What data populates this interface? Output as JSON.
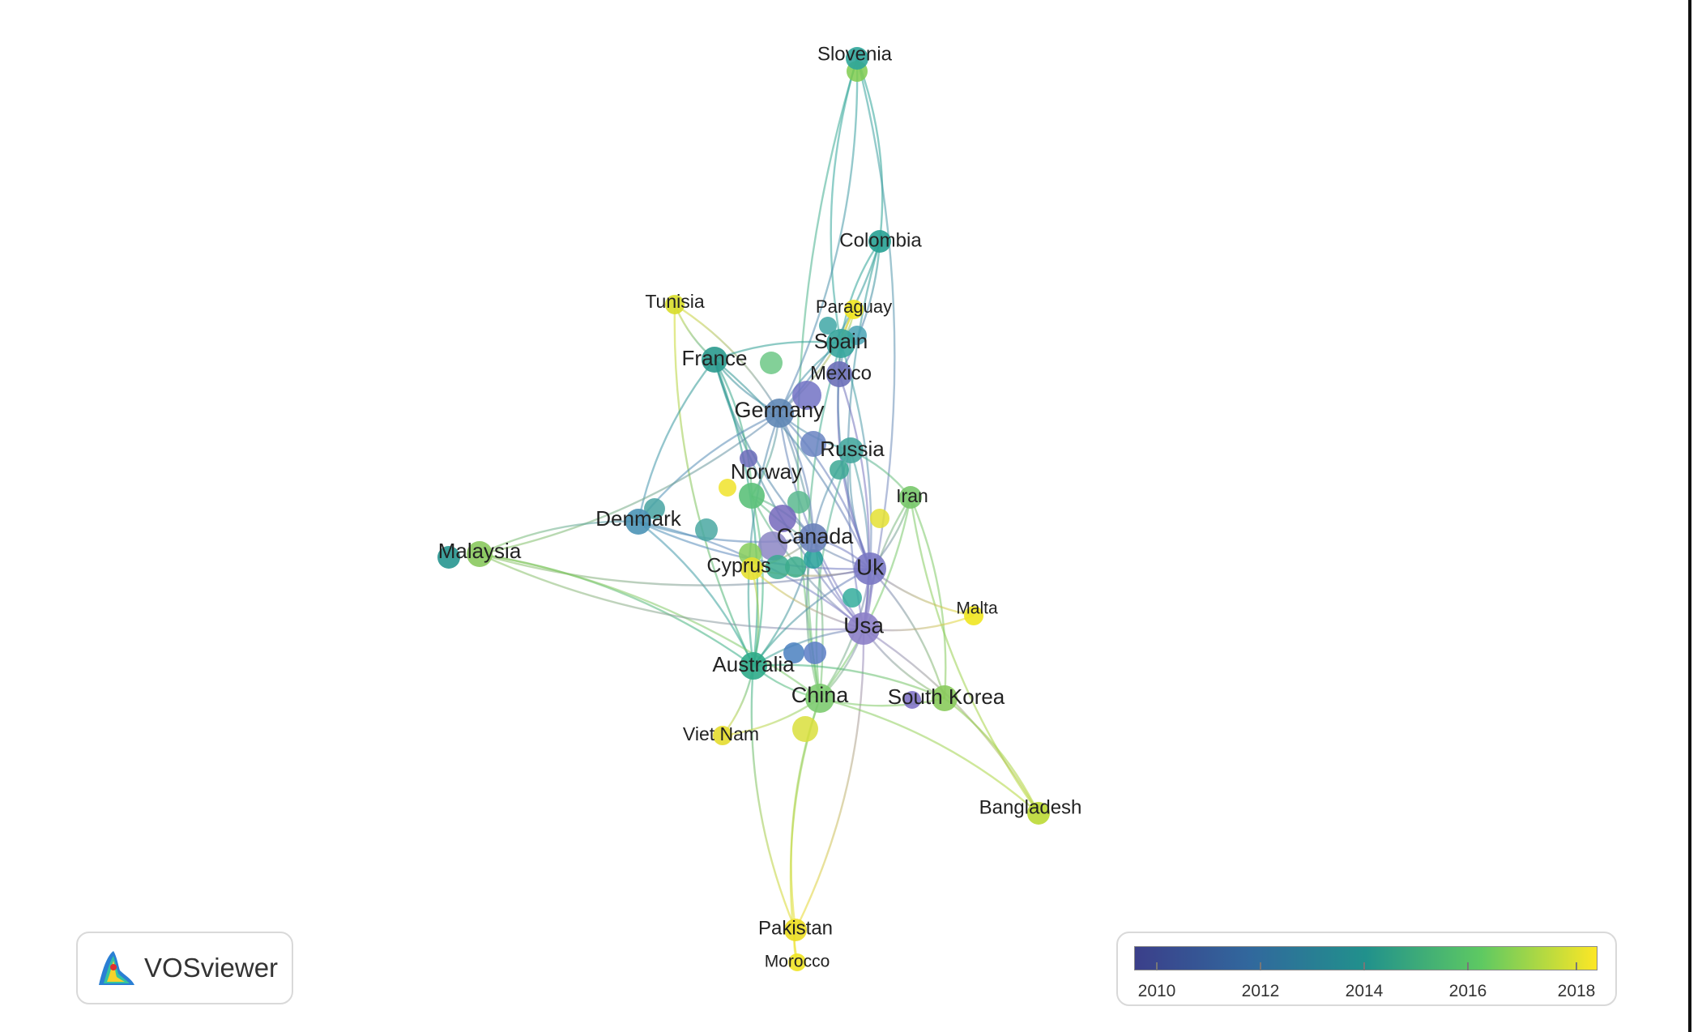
{
  "app": {
    "logo_text": "VOSviewer"
  },
  "legend": {
    "colors": [
      "#440154",
      "#3b528b",
      "#21918c",
      "#5ec962",
      "#fde725"
    ],
    "ticks": [
      "2010",
      "2012",
      "2014",
      "2016",
      "2018"
    ]
  },
  "nodes": [
    {
      "id": "slovenia",
      "label": "Slovenia",
      "color": "#2fa59a"
    },
    {
      "id": "colombia",
      "label": "Colombia",
      "color": "#27a193"
    },
    {
      "id": "tunisia",
      "label": "Tunisia",
      "color": "#d8dd2a"
    },
    {
      "id": "paraguay",
      "label": "Paraguay",
      "color": "#f2e520"
    },
    {
      "id": "spain",
      "label": "Spain",
      "color": "#36a59c"
    },
    {
      "id": "france",
      "label": "France",
      "color": "#2a9a8e"
    },
    {
      "id": "mexico",
      "label": "Mexico",
      "color": "#6c6fb8"
    },
    {
      "id": "germany",
      "label": "Germany",
      "color": "#5f87b5"
    },
    {
      "id": "russia",
      "label": "Russia",
      "color": "#47a8a0"
    },
    {
      "id": "norway",
      "label": "Norway",
      "color": "#5cc17a"
    },
    {
      "id": "iran",
      "label": "Iran",
      "color": "#78c86a"
    },
    {
      "id": "denmark",
      "label": "Denmark",
      "color": "#4b93b6"
    },
    {
      "id": "canada",
      "label": "Canada",
      "color": "#6c82ba"
    },
    {
      "id": "malaysia",
      "label": "Malaysia",
      "color": "#89c95e"
    },
    {
      "id": "cyprus",
      "label": "Cyprus",
      "color": "#e6e030"
    },
    {
      "id": "uk",
      "label": "Uk",
      "color": "#7a78c4"
    },
    {
      "id": "malta",
      "label": "Malta",
      "color": "#f0e521"
    },
    {
      "id": "usa",
      "label": "Usa",
      "color": "#8c80c8"
    },
    {
      "id": "australia",
      "label": "Australia",
      "color": "#2eab8a"
    },
    {
      "id": "china",
      "label": "China",
      "color": "#7dcb70"
    },
    {
      "id": "southkorea",
      "label": "South Korea",
      "color": "#8acb5c"
    },
    {
      "id": "vietnam",
      "label": "Viet Nam",
      "color": "#e4dc2e"
    },
    {
      "id": "bangladesh",
      "label": "Bangladesh",
      "color": "#bbd934"
    },
    {
      "id": "pakistan",
      "label": "Pakistan",
      "color": "#ecde24"
    },
    {
      "id": "morocco",
      "label": "Morocco",
      "color": "#f0e424"
    }
  ],
  "edges": [
    [
      "slovenia",
      "colombia"
    ],
    [
      "slovenia",
      "spain"
    ],
    [
      "slovenia",
      "usa"
    ],
    [
      "slovenia",
      "china"
    ],
    [
      "slovenia",
      "germany"
    ],
    [
      "colombia",
      "spain"
    ],
    [
      "colombia",
      "mexico"
    ],
    [
      "colombia",
      "usa"
    ],
    [
      "colombia",
      "germany"
    ],
    [
      "tunisia",
      "france"
    ],
    [
      "tunisia",
      "germany"
    ],
    [
      "tunisia",
      "australia"
    ],
    [
      "paraguay",
      "spain"
    ],
    [
      "paraguay",
      "mexico"
    ],
    [
      "paraguay",
      "germany"
    ],
    [
      "france",
      "germany"
    ],
    [
      "france",
      "spain"
    ],
    [
      "france",
      "canada"
    ],
    [
      "france",
      "uk"
    ],
    [
      "france",
      "usa"
    ],
    [
      "france",
      "australia"
    ],
    [
      "france",
      "denmark"
    ],
    [
      "france",
      "norway"
    ],
    [
      "spain",
      "germany"
    ],
    [
      "spain",
      "mexico"
    ],
    [
      "spain",
      "uk"
    ],
    [
      "spain",
      "usa"
    ],
    [
      "spain",
      "china"
    ],
    [
      "germany",
      "uk"
    ],
    [
      "germany",
      "usa"
    ],
    [
      "germany",
      "canada"
    ],
    [
      "germany",
      "russia"
    ],
    [
      "germany",
      "norway"
    ],
    [
      "germany",
      "australia"
    ],
    [
      "germany",
      "china"
    ],
    [
      "germany",
      "denmark"
    ],
    [
      "germany",
      "malaysia"
    ],
    [
      "russia",
      "uk"
    ],
    [
      "russia",
      "usa"
    ],
    [
      "russia",
      "canada"
    ],
    [
      "russia",
      "iran"
    ],
    [
      "russia",
      "china"
    ],
    [
      "norway",
      "canada"
    ],
    [
      "norway",
      "uk"
    ],
    [
      "norway",
      "australia"
    ],
    [
      "norway",
      "usa"
    ],
    [
      "iran",
      "uk"
    ],
    [
      "iran",
      "usa"
    ],
    [
      "iran",
      "china"
    ],
    [
      "iran",
      "bangladesh"
    ],
    [
      "iran",
      "southkorea"
    ],
    [
      "denmark",
      "canada"
    ],
    [
      "denmark",
      "australia"
    ],
    [
      "denmark",
      "uk"
    ],
    [
      "denmark",
      "usa"
    ],
    [
      "denmark",
      "malaysia"
    ],
    [
      "malaysia",
      "australia"
    ],
    [
      "malaysia",
      "uk"
    ],
    [
      "malaysia",
      "china"
    ],
    [
      "malaysia",
      "usa"
    ],
    [
      "canada",
      "uk"
    ],
    [
      "canada",
      "usa"
    ],
    [
      "canada",
      "australia"
    ],
    [
      "canada",
      "china"
    ],
    [
      "canada",
      "cyprus"
    ],
    [
      "cyprus",
      "uk"
    ],
    [
      "cyprus",
      "australia"
    ],
    [
      "cyprus",
      "usa"
    ],
    [
      "uk",
      "usa"
    ],
    [
      "uk",
      "australia"
    ],
    [
      "uk",
      "china"
    ],
    [
      "uk",
      "malta"
    ],
    [
      "uk",
      "southkorea"
    ],
    [
      "usa",
      "australia"
    ],
    [
      "usa",
      "china"
    ],
    [
      "usa",
      "southkorea"
    ],
    [
      "usa",
      "bangladesh"
    ],
    [
      "usa",
      "malta"
    ],
    [
      "usa",
      "pakistan"
    ],
    [
      "australia",
      "china"
    ],
    [
      "australia",
      "vietnam"
    ],
    [
      "australia",
      "pakistan"
    ],
    [
      "australia",
      "southkorea"
    ],
    [
      "china",
      "southkorea"
    ],
    [
      "china",
      "bangladesh"
    ],
    [
      "china",
      "pakistan"
    ],
    [
      "china",
      "vietnam"
    ],
    [
      "china",
      "morocco"
    ],
    [
      "southkorea",
      "bangladesh"
    ],
    [
      "pakistan",
      "morocco"
    ],
    [
      "mexico",
      "usa"
    ],
    [
      "mexico",
      "uk"
    ]
  ]
}
